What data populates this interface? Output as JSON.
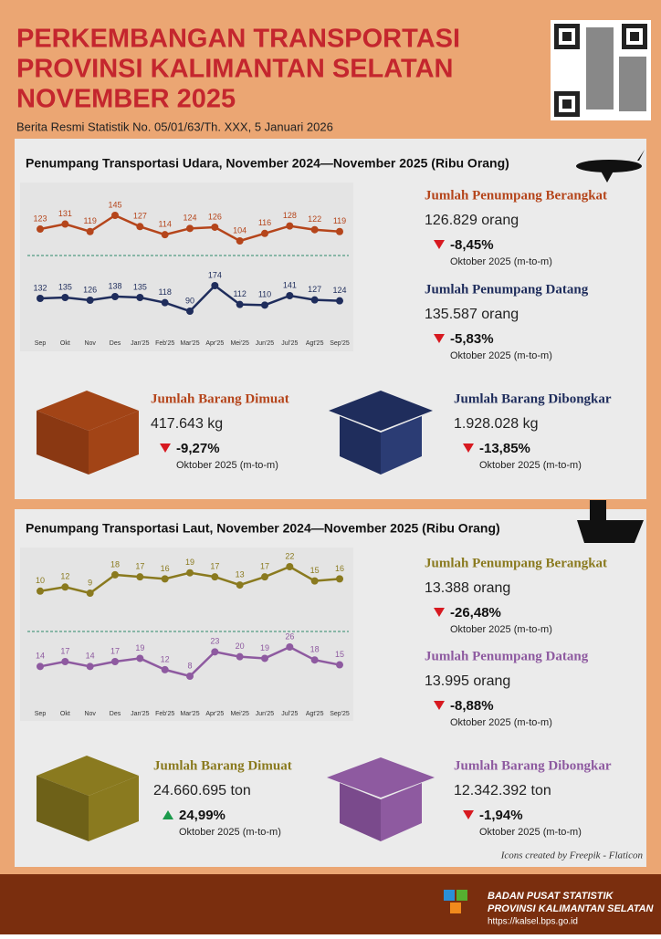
{
  "header": {
    "title_lines": [
      "PERKEMBANGAN TRANSPORTASI",
      "PROVINSI KALIMANTAN SELATAN",
      "NOVEMBER 2025"
    ],
    "subtitle": "Berita Resmi Statistik No. 05/01/63/Th. XXX, 5 Januari 2026"
  },
  "chart_data": [
    {
      "type": "line",
      "title": "Penumpang Transportasi Udara, November 2024—November  2025 (Ribu Orang)",
      "categories": [
        "Sep",
        "Okt",
        "Nov",
        "Des",
        "Jan'25",
        "Feb'25",
        "Mar'25",
        "Apr'25",
        "Mei'25",
        "Jun'25",
        "Jul'25",
        "Agt'25",
        "Sep'25"
      ],
      "series": [
        {
          "color": "#b5451b",
          "values": [
            123,
            131,
            119,
            145,
            127,
            114,
            124,
            126,
            104,
            116,
            128,
            122,
            119
          ]
        },
        {
          "color": "#1f2d5c",
          "values": [
            132,
            135,
            126,
            138,
            135,
            118,
            90,
            174,
            112,
            110,
            141,
            127,
            124
          ]
        }
      ]
    },
    {
      "type": "line",
      "title": "Penumpang Transportasi Laut, November 2024—November  2025  (Ribu Orang)",
      "categories": [
        "Sep",
        "Okt",
        "Nov",
        "Des",
        "Jan'25",
        "Feb'25",
        "Mar'25",
        "Apr'25",
        "Mei'25",
        "Jun'25",
        "Jul'25",
        "Agt'25",
        "Sep'25"
      ],
      "series": [
        {
          "color": "#8a7a1f",
          "values": [
            10,
            12,
            9,
            18,
            17,
            16,
            19,
            17,
            13,
            17,
            22,
            15,
            16
          ]
        },
        {
          "color": "#8e5aa0",
          "values": [
            14,
            17,
            14,
            17,
            19,
            12,
            8,
            23,
            20,
            19,
            26,
            18,
            15
          ]
        }
      ]
    }
  ],
  "air_stats": [
    {
      "label": "Jumlah Penumpang Berangkat",
      "value": "126.829 orang",
      "change": "-8,45%",
      "period": "Oktober 2025 (m-to-m)",
      "color": "#b5451b"
    },
    {
      "label": "Jumlah Penumpang Datang",
      "value": "135.587 orang",
      "change": "-5,83%",
      "period": "Oktober 2025 (m-to-m)",
      "color": "#1f2d5c"
    },
    {
      "label": "Jumlah Barang Dimuat",
      "value": "417.643 kg",
      "change": "-9,27%",
      "period": "Oktober 2025 (m-to-m)",
      "color": "#b5451b"
    },
    {
      "label": "Jumlah Barang Dibongkar",
      "value": "1.928.028 kg",
      "change": "-13,85%",
      "period": "Oktober 2025 (m-to-m)",
      "color": "#1f2d5c"
    }
  ],
  "sea_stats": [
    {
      "label": "Jumlah Penumpang Berangkat",
      "value": "13.388 orang",
      "change": "-26,48%",
      "period": "Oktober 2025 (m-to-m)",
      "color": "#8a7a1f"
    },
    {
      "label": "Jumlah Penumpang Datang",
      "value": "13.995 orang",
      "change": "-8,88%",
      "period": "Oktober 2025 (m-to-m)",
      "color": "#8e5aa0"
    },
    {
      "label": "Jumlah Barang Dimuat",
      "value": "24.660.695 ton",
      "change": "24,99%",
      "period": "Oktober 2025 (m-to-m)",
      "color": "#8a7a1f"
    },
    {
      "label": "Jumlah Barang Dibongkar",
      "value": "12.342.392 ton",
      "change": "-1,94%",
      "period": "Oktober 2025 (m-to-m)",
      "color": "#8e5aa0"
    }
  ],
  "credit": "Icons created by Freepik - Flaticon",
  "footer": {
    "org_lines": [
      "BADAN PUSAT STATISTIK",
      "PROVINSI KALIMANTAN SELATAN"
    ],
    "url": "https://kalsel.bps.go.id"
  }
}
